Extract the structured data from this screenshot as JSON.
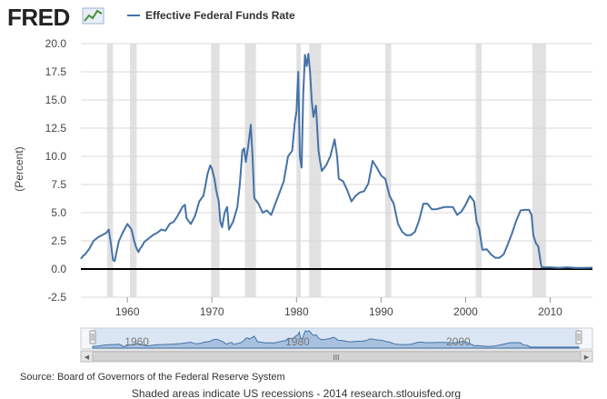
{
  "header": {
    "brand": "FRED",
    "legend_label": "Effective Federal Funds Rate"
  },
  "colors": {
    "series": "#4572a7",
    "recession": "#e1e1e1",
    "grid": "#d8d8d8",
    "zero_line": "#000000",
    "navigator_fill": "#c6d8ef"
  },
  "chart_data": {
    "type": "line",
    "title": "Effective Federal Funds Rate",
    "xlabel": "",
    "ylabel": "(Percent)",
    "xlim": [
      1954.5,
      2015
    ],
    "ylim": [
      -2.5,
      20
    ],
    "x_ticks": [
      "1960",
      "1970",
      "1980",
      "1990",
      "2000",
      "2010"
    ],
    "y_ticks": [
      "20.0",
      "17.5",
      "15.0",
      "12.5",
      "10.0",
      "7.5",
      "5.0",
      "2.5",
      "0.0",
      "-2.5"
    ],
    "recessions": [
      [
        1957.6,
        1958.3
      ],
      [
        1960.3,
        1961.1
      ],
      [
        1969.9,
        1970.9
      ],
      [
        1973.9,
        1975.2
      ],
      [
        1980.0,
        1980.5
      ],
      [
        1981.5,
        1982.9
      ],
      [
        1990.5,
        1991.2
      ],
      [
        2001.2,
        2001.9
      ],
      [
        2007.9,
        2009.5
      ]
    ],
    "series": [
      {
        "name": "Effective Federal Funds Rate",
        "x": [
          1954.5,
          1954.8,
          1955.0,
          1955.5,
          1956.0,
          1956.5,
          1957.0,
          1957.5,
          1957.8,
          1958.0,
          1958.3,
          1958.5,
          1958.8,
          1959.0,
          1959.5,
          1960.0,
          1960.5,
          1960.8,
          1961.0,
          1961.3,
          1961.5,
          1961.7,
          1962.0,
          1962.5,
          1963.0,
          1963.5,
          1964.0,
          1964.5,
          1965.0,
          1965.5,
          1966.0,
          1966.5,
          1966.8,
          1967.0,
          1967.5,
          1968.0,
          1968.5,
          1969.0,
          1969.5,
          1969.8,
          1970.0,
          1970.3,
          1970.5,
          1970.8,
          1971.0,
          1971.2,
          1971.5,
          1971.8,
          1972.0,
          1972.5,
          1973.0,
          1973.3,
          1973.6,
          1973.8,
          1974.0,
          1974.3,
          1974.6,
          1974.8,
          1975.0,
          1975.5,
          1976.0,
          1976.5,
          1977.0,
          1977.5,
          1978.0,
          1978.5,
          1979.0,
          1979.5,
          1979.8,
          1980.0,
          1980.2,
          1980.4,
          1980.6,
          1980.8,
          1981.0,
          1981.2,
          1981.4,
          1981.6,
          1981.8,
          1982.0,
          1982.3,
          1982.6,
          1982.8,
          1983.0,
          1983.5,
          1984.0,
          1984.5,
          1984.8,
          1985.0,
          1985.5,
          1986.0,
          1986.5,
          1987.0,
          1987.5,
          1988.0,
          1988.5,
          1989.0,
          1989.5,
          1990.0,
          1990.5,
          1991.0,
          1991.5,
          1992.0,
          1992.5,
          1993.0,
          1993.5,
          1994.0,
          1994.5,
          1995.0,
          1995.5,
          1996.0,
          1996.5,
          1997.0,
          1997.5,
          1998.0,
          1998.5,
          1999.0,
          1999.5,
          2000.0,
          2000.5,
          2001.0,
          2001.3,
          2001.6,
          2001.9,
          2002.0,
          2002.5,
          2003.0,
          2003.5,
          2004.0,
          2004.5,
          2005.0,
          2005.5,
          2006.0,
          2006.5,
          2007.0,
          2007.5,
          2007.8,
          2008.0,
          2008.3,
          2008.6,
          2008.9,
          2009.0,
          2009.5,
          2010.0,
          2011.0,
          2012.0,
          2013.0,
          2014.0,
          2015.0
        ],
        "values": [
          0.9,
          1.2,
          1.3,
          1.8,
          2.5,
          2.8,
          3.0,
          3.2,
          3.5,
          2.5,
          0.8,
          0.7,
          1.8,
          2.5,
          3.3,
          4.0,
          3.5,
          2.5,
          2.0,
          1.5,
          1.8,
          2.0,
          2.4,
          2.7,
          3.0,
          3.2,
          3.5,
          3.4,
          4.0,
          4.2,
          4.8,
          5.5,
          5.7,
          4.5,
          4.0,
          4.7,
          6.0,
          6.5,
          8.5,
          9.2,
          8.9,
          8.0,
          7.0,
          6.0,
          4.2,
          3.7,
          5.0,
          5.5,
          3.5,
          4.2,
          5.5,
          7.5,
          10.5,
          10.7,
          9.5,
          11.0,
          12.8,
          10.0,
          6.3,
          5.8,
          5.0,
          5.2,
          4.8,
          5.8,
          6.8,
          7.8,
          10.0,
          10.5,
          13.0,
          14.0,
          17.5,
          10.0,
          9.0,
          15.5,
          19.0,
          18.0,
          19.1,
          17.5,
          15.0,
          13.5,
          14.5,
          10.5,
          9.5,
          8.7,
          9.2,
          10.0,
          11.5,
          10.0,
          8.0,
          7.8,
          7.0,
          6.0,
          6.5,
          6.8,
          6.9,
          7.6,
          9.6,
          9.0,
          8.3,
          8.0,
          6.5,
          5.8,
          4.0,
          3.3,
          3.0,
          3.0,
          3.3,
          4.3,
          5.8,
          5.8,
          5.3,
          5.3,
          5.4,
          5.5,
          5.5,
          5.5,
          4.8,
          5.1,
          5.7,
          6.5,
          6.0,
          4.2,
          3.6,
          2.1,
          1.7,
          1.75,
          1.3,
          1.0,
          1.0,
          1.3,
          2.2,
          3.2,
          4.3,
          5.2,
          5.25,
          5.25,
          4.8,
          3.0,
          2.3,
          2.0,
          0.5,
          0.15,
          0.15,
          0.15,
          0.1,
          0.15,
          0.1,
          0.1,
          0.12
        ]
      }
    ]
  },
  "navigator": {
    "labels": [
      "1960",
      "1980",
      "2000"
    ],
    "handle_glyph": "III"
  },
  "scrollbar": {
    "left_arrow": "◀",
    "right_arrow": "▶",
    "grip_glyph": "III"
  },
  "footer": {
    "source": "Source: Board of Governors of the Federal Reserve System",
    "note": "Shaded areas indicate US recessions - 2014 research.stlouisfed.org"
  }
}
